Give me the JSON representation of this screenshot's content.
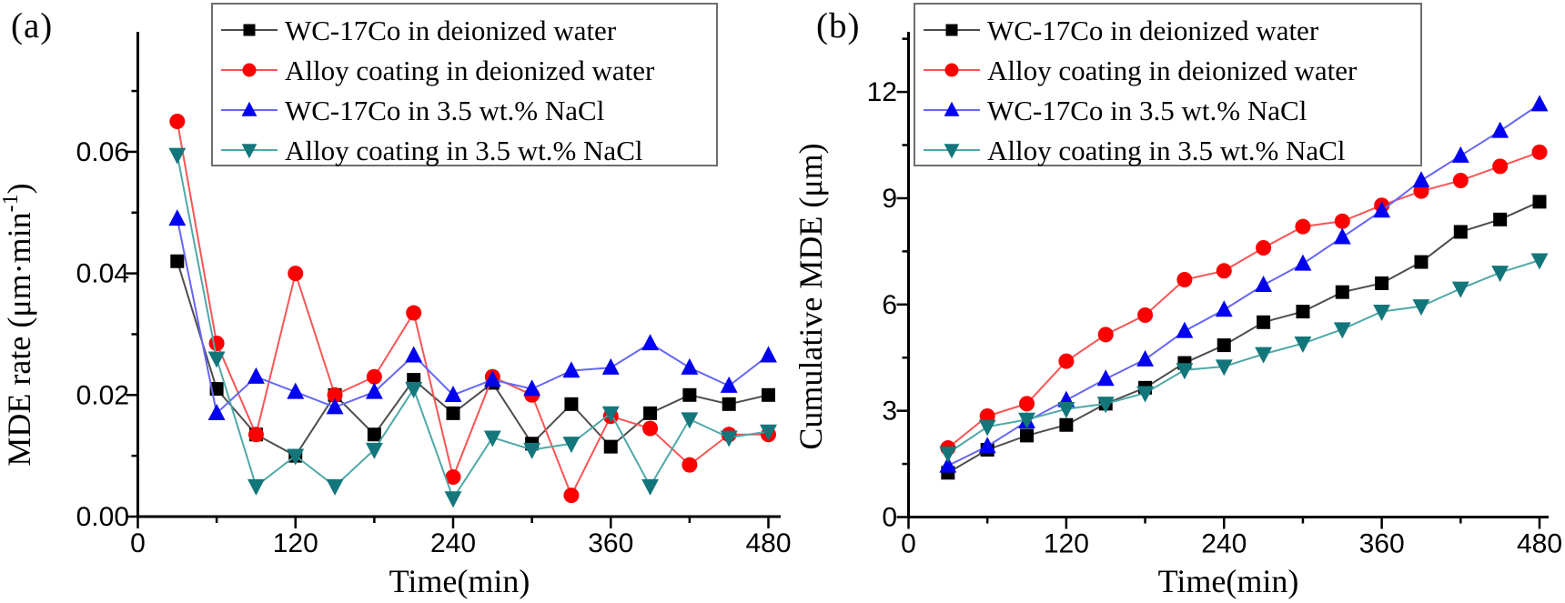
{
  "figure": {
    "background": "#ffffff",
    "legend_border_color": "#6e6e6e",
    "axis_color": "#000000"
  },
  "chart_data": [
    {
      "id": "a",
      "type": "line",
      "panel_label": "(a)",
      "xlabel": "Time(min)",
      "ylabel": "MDE rate (μm·min⁻¹)",
      "ylabel_parts": {
        "main": "MDE rate (μm·min",
        "sup": "-1",
        "end": ")"
      },
      "xlim": [
        0,
        490
      ],
      "ylim": [
        0,
        0.0797
      ],
      "x_major_ticks": [
        0,
        120,
        240,
        360,
        480
      ],
      "x_tick_labels": [
        "0",
        "120",
        "240",
        "360",
        "480"
      ],
      "x_minor_ticks": [
        60,
        180,
        300,
        420
      ],
      "y_major_ticks": [
        0,
        0.02,
        0.04,
        0.06
      ],
      "y_tick_labels": [
        "0.00",
        "0.02",
        "0.04",
        "0.06"
      ],
      "y_minor_ticks": [
        0.01,
        0.03,
        0.05,
        0.07
      ],
      "grid": false,
      "legend_position": "top-inside",
      "x": [
        30,
        60,
        90,
        120,
        150,
        180,
        210,
        240,
        270,
        300,
        330,
        360,
        390,
        420,
        450,
        480
      ],
      "series": [
        {
          "name": "WC-17Co  in deionized water",
          "marker": "square",
          "marker_color": "#000000",
          "line_color": "#4d4d4d",
          "values": [
            0.042,
            0.021,
            0.0135,
            0.01,
            0.02,
            0.0135,
            0.0225,
            0.017,
            0.022,
            0.012,
            0.0185,
            0.0115,
            0.017,
            0.02,
            0.0185,
            0.02
          ]
        },
        {
          "name": "Alloy coating in deionized water",
          "marker": "circle",
          "marker_color": "#fa0000",
          "line_color": "#f85555",
          "values": [
            0.065,
            0.0285,
            0.0135,
            0.04,
            0.02,
            0.023,
            0.0335,
            0.0065,
            0.023,
            0.02,
            0.0035,
            0.0165,
            0.0145,
            0.0085,
            0.0135,
            0.0135
          ]
        },
        {
          "name": "WC-17Co in 3.5 wt.% NaCl",
          "marker": "triangle-up",
          "marker_color": "#0202ee",
          "line_color": "#6666f8",
          "values": [
            0.049,
            0.017,
            0.023,
            0.0205,
            0.018,
            0.0205,
            0.0265,
            0.02,
            0.0225,
            0.021,
            0.024,
            0.0245,
            0.0285,
            0.0245,
            0.0215,
            0.0265
          ]
        },
        {
          "name": "Alloy coating in 3.5 wt.% NaCl",
          "marker": "triangle-down",
          "marker_color": "#13767b",
          "line_color": "#4fa8a8",
          "values": [
            0.0595,
            0.026,
            0.005,
            0.01,
            0.005,
            0.011,
            0.021,
            0.003,
            0.013,
            0.011,
            0.012,
            0.017,
            0.005,
            0.016,
            0.013,
            0.014
          ]
        }
      ]
    },
    {
      "id": "b",
      "type": "line",
      "panel_label": "(b)",
      "xlabel": "Time(min)",
      "ylabel": "Cumulative MDE (μm)",
      "ylabel_parts": {
        "main": "Cumulative MDE (μm)",
        "sup": "",
        "end": ""
      },
      "xlim": [
        0,
        490
      ],
      "ylim": [
        0,
        13.65
      ],
      "x_major_ticks": [
        0,
        120,
        240,
        360,
        480
      ],
      "x_tick_labels": [
        "0",
        "120",
        "240",
        "360",
        "480"
      ],
      "x_minor_ticks": [
        60,
        180,
        300,
        420
      ],
      "y_major_ticks": [
        0,
        3,
        6,
        9,
        12
      ],
      "y_tick_labels": [
        "0",
        "3",
        "6",
        "9",
        "12"
      ],
      "y_minor_ticks": [
        1.5,
        4.5,
        7.5,
        10.5,
        13.5
      ],
      "grid": false,
      "legend_position": "top-inside",
      "x": [
        30,
        60,
        90,
        120,
        150,
        180,
        210,
        240,
        270,
        300,
        330,
        360,
        390,
        420,
        450,
        480
      ],
      "series": [
        {
          "name": "WC-17Co  in deionized water",
          "marker": "square",
          "marker_color": "#000000",
          "line_color": "#4d4d4d",
          "values": [
            1.25,
            1.9,
            2.3,
            2.6,
            3.2,
            3.65,
            4.35,
            4.85,
            5.5,
            5.8,
            6.35,
            6.6,
            7.2,
            8.05,
            8.4,
            8.9
          ]
        },
        {
          "name": "Alloy coating in deionized water",
          "marker": "circle",
          "marker_color": "#fa0000",
          "line_color": "#f85555",
          "values": [
            1.95,
            2.85,
            3.2,
            4.4,
            5.15,
            5.7,
            6.7,
            6.95,
            7.6,
            8.2,
            8.35,
            8.8,
            9.2,
            9.5,
            9.9,
            10.3
          ]
        },
        {
          "name": "WC-17Co  in 3.5 wt.% NaCl",
          "marker": "triangle-up",
          "marker_color": "#0202ee",
          "line_color": "#6666f8",
          "values": [
            1.45,
            2.0,
            2.7,
            3.3,
            3.9,
            4.45,
            5.25,
            5.85,
            6.55,
            7.15,
            7.9,
            8.65,
            9.5,
            10.2,
            10.9,
            11.65
          ]
        },
        {
          "name": "Alloy coating in 3.5 wt.% NaCl",
          "marker": "triangle-down",
          "marker_color": "#13767b",
          "line_color": "#4fa8a8",
          "values": [
            1.8,
            2.55,
            2.75,
            3.05,
            3.2,
            3.5,
            4.15,
            4.25,
            4.6,
            4.9,
            5.3,
            5.8,
            5.95,
            6.45,
            6.9,
            7.25
          ]
        }
      ]
    }
  ]
}
